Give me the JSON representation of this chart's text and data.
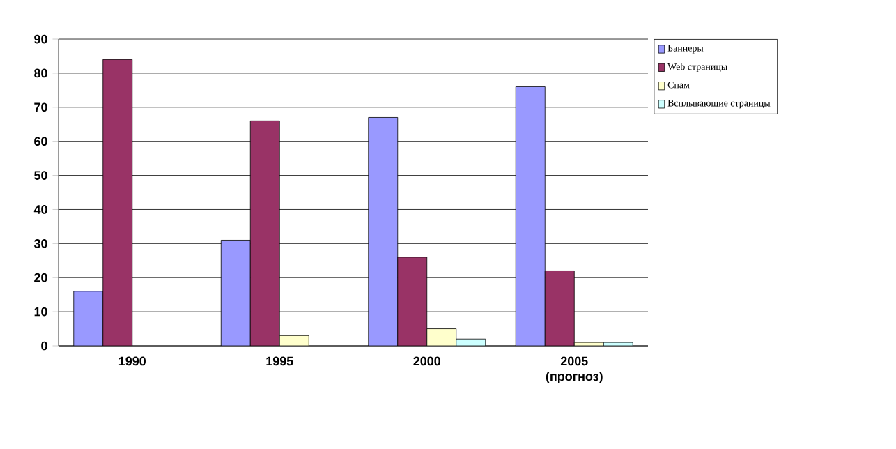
{
  "chart_data": {
    "type": "bar",
    "categories": [
      "1990",
      "1995",
      "2000",
      "2005 (прогноз)"
    ],
    "series": [
      {
        "name": "Баннеры",
        "color": "#9999ff",
        "values": [
          16,
          31,
          67,
          76
        ]
      },
      {
        "name": "Web страницы",
        "color": "#993366",
        "values": [
          84,
          66,
          26,
          22
        ]
      },
      {
        "name": "Спам",
        "color": "#ffffcc",
        "values": [
          null,
          3,
          5,
          1
        ]
      },
      {
        "name": "Всплывающие страницы",
        "color": "#ccffff",
        "values": [
          null,
          null,
          2,
          1
        ]
      }
    ],
    "ylim": [
      0,
      90
    ],
    "yticks": [
      0,
      10,
      20,
      30,
      40,
      50,
      60,
      70,
      80,
      90
    ],
    "grid": "y",
    "legend": "right"
  }
}
